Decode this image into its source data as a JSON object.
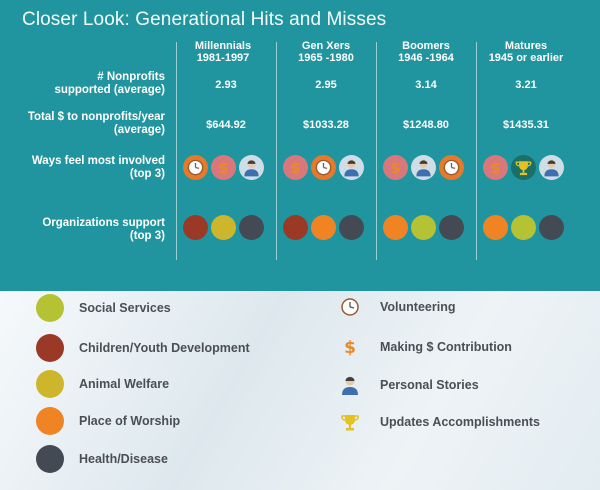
{
  "title": "Closer Look: Generational Hits and Misses",
  "colors": {
    "social_services": "#b4c234",
    "children_youth": "#9a3a26",
    "animal_welfare": "#cdb52c",
    "place_of_worship": "#f08424",
    "health_disease": "#444a53",
    "volunteering": "#e77a2a",
    "making_contribution": "#d9787a",
    "personal_stories": "#cfdde6",
    "updates_accomplishments": "#1a6f68"
  },
  "columns": [
    {
      "name": "Millennials",
      "years": "1981-1997"
    },
    {
      "name": "Gen Xers",
      "years": "1965 -1980"
    },
    {
      "name": "Boomers",
      "years": "1946 -1964"
    },
    {
      "name": "Matures",
      "years": "1945 or earlier"
    }
  ],
  "rows": {
    "nonprofits_label": "#  Nonprofits supported (average)",
    "nonprofits_label_1": "#  Nonprofits",
    "nonprofits_label_2": "supported (average)",
    "total_label_1": "Total $ to nonprofits/year",
    "total_label_2": "(average)",
    "ways_label_1": "Ways feel most involved",
    "ways_label_2": "(top 3)",
    "orgs_label_1": "Organizations support",
    "orgs_label_2": "(top 3)"
  },
  "nonprofits": [
    "2.93",
    "2.95",
    "3.14",
    "3.21"
  ],
  "totals": [
    "$644.92",
    "$1033.28",
    "$1248.80",
    "$1435.31"
  ],
  "ways": [
    [
      "volunteering-icon",
      "dollar-icon",
      "person-icon"
    ],
    [
      "dollar-icon",
      "volunteering-icon",
      "person-icon"
    ],
    [
      "dollar-icon",
      "person-icon",
      "volunteering-icon"
    ],
    [
      "dollar-icon",
      "trophy-icon",
      "person-icon"
    ]
  ],
  "orgs": [
    [
      "#9a3a26",
      "#cdb52c",
      "#444a53"
    ],
    [
      "#9a3a26",
      "#f08424",
      "#444a53"
    ],
    [
      "#f08424",
      "#b4c234",
      "#444a53"
    ],
    [
      "#f08424",
      "#b4c234",
      "#444a53"
    ]
  ],
  "legend_left": [
    {
      "label": "Social Services",
      "color": "#b4c234"
    },
    {
      "label": "Children/Youth Development",
      "color": "#9a3a26"
    },
    {
      "label": "Animal Welfare",
      "color": "#cdb52c"
    },
    {
      "label": "Place of Worship",
      "color": "#f08424"
    },
    {
      "label": "Health/Disease",
      "color": "#444a53"
    }
  ],
  "legend_right": [
    {
      "label": "Volunteering",
      "icon": "volunteering-icon"
    },
    {
      "label": "Making $ Contribution",
      "icon": "dollar-icon"
    },
    {
      "label": "Personal Stories",
      "icon": "person-icon"
    },
    {
      "label": "Updates Accomplishments",
      "icon": "trophy-icon"
    }
  ]
}
